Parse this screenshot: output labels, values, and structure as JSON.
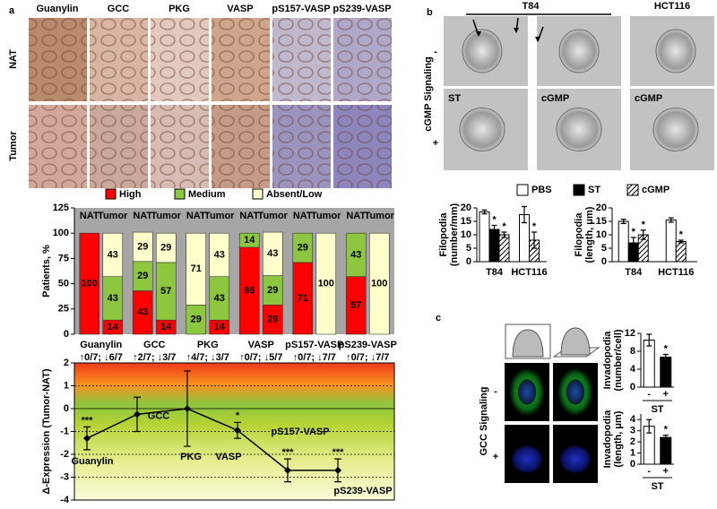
{
  "panel_labels": [
    "a",
    "b",
    "c"
  ],
  "micrographs_a": {
    "columns": [
      "Guanylin",
      "GCC",
      "PKG",
      "VASP",
      "pS157-VASP",
      "pS239-VASP"
    ],
    "rows": [
      "NAT",
      "Tumor"
    ]
  },
  "micrographs_b": {
    "columns": [
      "T84",
      "HCT116"
    ],
    "rows": [
      "-",
      "+"
    ],
    "row_title": "cGMP Signaling",
    "image_labels": [
      "ST",
      "cGMP",
      "cGMP"
    ]
  },
  "micrographs_c": {
    "rows": [
      "-",
      "+"
    ],
    "row_title": "GCC Signaling",
    "image_labels": [
      "ST",
      "ST"
    ]
  },
  "chart_data": [
    {
      "type": "stacked_bar",
      "ylabel": "Patients, %",
      "groups": [
        {
          "name": "Guanylin",
          "note": "↑0/7; ↓6/7"
        },
        {
          "name": "GCC",
          "note": "↑2/7; ↓3/7"
        },
        {
          "name": "PKG",
          "note": "↑4/7; ↓3/7"
        },
        {
          "name": "VASP",
          "note": "↑0/7; ↓5/7"
        },
        {
          "name": "pS157-VASP",
          "note": "↑0/7; ↓7/7"
        },
        {
          "name": "pS239-VASP",
          "note": "↑0/7; ↓7/7"
        }
      ],
      "bars": [
        "NAT",
        "Tumor"
      ],
      "series": [
        {
          "name": "High",
          "color": "#ff0000",
          "values": [
            [
              100,
              14
            ],
            [
              43,
              14
            ],
            [
              0,
              14
            ],
            [
              86,
              29
            ],
            [
              71,
              0
            ],
            [
              57,
              0
            ]
          ]
        },
        {
          "name": "Medium",
          "color": "#8dc63f",
          "values": [
            [
              0,
              43
            ],
            [
              29,
              57
            ],
            [
              29,
              43
            ],
            [
              14,
              29
            ],
            [
              29,
              0
            ],
            [
              43,
              0
            ]
          ]
        },
        {
          "name": "Absent/Low",
          "color": "#ffffcc",
          "values": [
            [
              0,
              43
            ],
            [
              29,
              29
            ],
            [
              71,
              43
            ],
            [
              0,
              43
            ],
            [
              0,
              100
            ],
            [
              0,
              100
            ]
          ]
        }
      ],
      "ylim": [
        0,
        125
      ],
      "yticks": [
        0,
        25,
        50,
        75,
        100,
        125
      ]
    },
    {
      "type": "line",
      "ylabel": "Δ-Expression (Tumor-NAT)",
      "categories": [
        "Guanylin",
        "GCC",
        "PKG",
        "VASP",
        "pS157-VASP",
        "pS239-VASP"
      ],
      "values": [
        -1.3,
        -0.25,
        0,
        -0.95,
        -2.7,
        -2.7
      ],
      "errors": [
        0.5,
        0.75,
        1.65,
        0.35,
        0.5,
        0.5
      ],
      "significance": [
        "***",
        null,
        null,
        "*",
        "***",
        "***"
      ],
      "ylim": [
        -4,
        2
      ],
      "yticks": [
        -4,
        -3,
        -2,
        -1,
        0,
        1,
        2
      ],
      "grid": true
    },
    {
      "type": "grouped_bar",
      "ylabel": [
        "Filopodia",
        "(number/mm)"
      ],
      "categories": [
        "T84",
        "HCT116"
      ],
      "series": [
        {
          "name": "PBS",
          "color": "#ffffff",
          "values": [
            18.5,
            17.5
          ],
          "errors": [
            0.7,
            3
          ],
          "significance": [
            null,
            null
          ]
        },
        {
          "name": "ST",
          "color": "#000000",
          "values": [
            12,
            null
          ],
          "errors": [
            1.5,
            null
          ],
          "significance": [
            "*",
            null
          ]
        },
        {
          "name": "cGMP",
          "color": "#000000",
          "pattern": "hatch",
          "values": [
            10,
            8
          ],
          "errors": [
            1,
            3
          ],
          "significance": [
            "*",
            "*"
          ]
        }
      ],
      "ylim": [
        0,
        20
      ],
      "yticks": [
        0,
        5,
        10,
        15,
        20
      ]
    },
    {
      "type": "grouped_bar",
      "ylabel": [
        "Filopodia",
        "(length, μm)"
      ],
      "categories": [
        "T84",
        "HCT116"
      ],
      "series": [
        {
          "color": "#ffffff",
          "values": [
            15,
            15.5
          ],
          "errors": [
            0.8,
            0.8
          ],
          "significance": [
            null,
            null
          ]
        },
        {
          "color": "#000000",
          "values": [
            7,
            null
          ],
          "errors": [
            2,
            null
          ],
          "significance": [
            "*",
            null
          ]
        },
        {
          "color": "#000000",
          "pattern": "hatch",
          "values": [
            10,
            7.5
          ],
          "errors": [
            1.7,
            0.5
          ],
          "significance": [
            "*",
            "*"
          ]
        }
      ],
      "ylim": [
        0,
        20
      ],
      "yticks": [
        0,
        5,
        10,
        15,
        20
      ]
    },
    {
      "type": "bar",
      "ylabel": [
        "Invadopodia",
        "(number/cell)"
      ],
      "categories": [
        "-",
        "+"
      ],
      "group_label": "ST",
      "values": [
        10.5,
        6.7
      ],
      "errors": [
        1.3,
        0.6
      ],
      "colors": [
        "#ffffff",
        "#000000"
      ],
      "significance": [
        null,
        "*"
      ],
      "ylim": [
        0,
        12
      ],
      "yticks": [
        0,
        4,
        8,
        12
      ]
    },
    {
      "type": "bar",
      "ylabel": [
        "Invadopodia",
        "(length, μm)"
      ],
      "categories": [
        "-",
        "+"
      ],
      "group_label": "ST",
      "values": [
        3.4,
        2.4
      ],
      "errors": [
        0.6,
        0.2
      ],
      "colors": [
        "#ffffff",
        "#000000"
      ],
      "significance": [
        null,
        "*"
      ],
      "ylim": [
        0,
        4.5
      ],
      "yticks": [
        0,
        1,
        2,
        3,
        4
      ]
    }
  ]
}
